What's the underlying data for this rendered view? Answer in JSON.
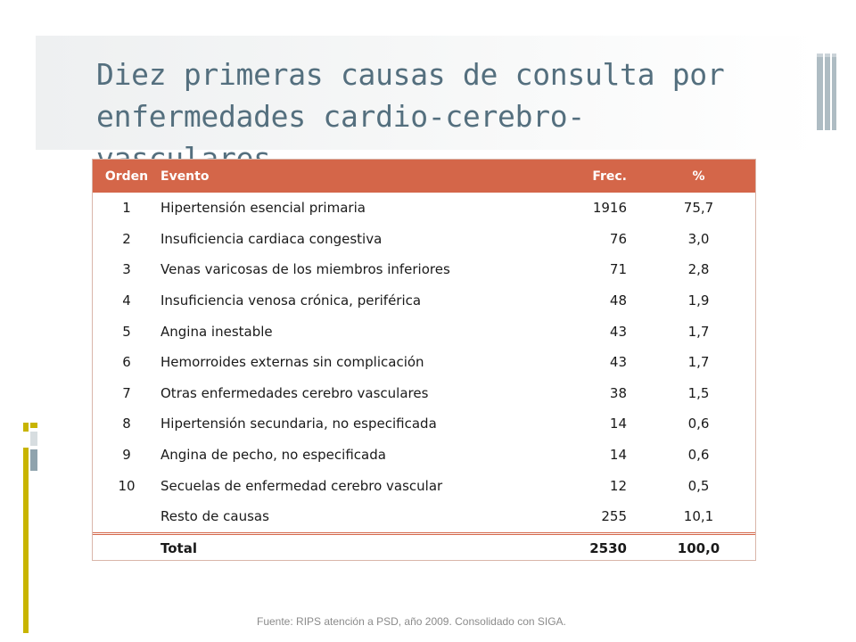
{
  "title": "Diez primeras causas de consulta por enfermedades cardio-cerebro-vasculares.",
  "table": {
    "headers": {
      "orden": "Orden",
      "evento": "Evento",
      "frec": "Frec.",
      "pct": "%"
    },
    "rows": [
      {
        "orden": "1",
        "evento": "Hipertensión esencial  primaria",
        "frec": "1916",
        "pct": "75,7"
      },
      {
        "orden": "2",
        "evento": "Insuficiencia cardiaca congestiva",
        "frec": "76",
        "pct": "3,0"
      },
      {
        "orden": "3",
        "evento": "Venas varicosas de los miembros inferiores",
        "frec": "71",
        "pct": "2,8"
      },
      {
        "orden": "4",
        "evento": "Insuficiencia venosa crónica, periférica",
        "frec": "48",
        "pct": "1,9"
      },
      {
        "orden": "5",
        "evento": "Angina inestable",
        "frec": "43",
        "pct": "1,7"
      },
      {
        "orden": "6",
        "evento": "Hemorroides externas sin complicación",
        "frec": "43",
        "pct": "1,7"
      },
      {
        "orden": "7",
        "evento": "Otras enfermedades  cerebro vasculares",
        "frec": "38",
        "pct": "1,5"
      },
      {
        "orden": "8",
        "evento": "Hipertensión secundaria, no especificada",
        "frec": "14",
        "pct": "0,6"
      },
      {
        "orden": "9",
        "evento": "Angina de pecho, no especificada",
        "frec": "14",
        "pct": "0,6"
      },
      {
        "orden": "10",
        "evento": "Secuelas de enfermedad  cerebro vascular",
        "frec": "12",
        "pct": "0,5"
      },
      {
        "orden": "",
        "evento": "Resto de causas",
        "frec": "255",
        "pct": "10,1"
      }
    ],
    "total": {
      "label": "Total",
      "frec": "2530",
      "pct": "100,0"
    }
  },
  "footer": "Fuente: RIPS atención a PSD, año 2009. Consolidado con SIGA.",
  "colors": {
    "header_bg": "#d46649",
    "title": "#546f7e",
    "accent_yellow": "#c8b400",
    "accent_gray": "#9aabb3"
  }
}
